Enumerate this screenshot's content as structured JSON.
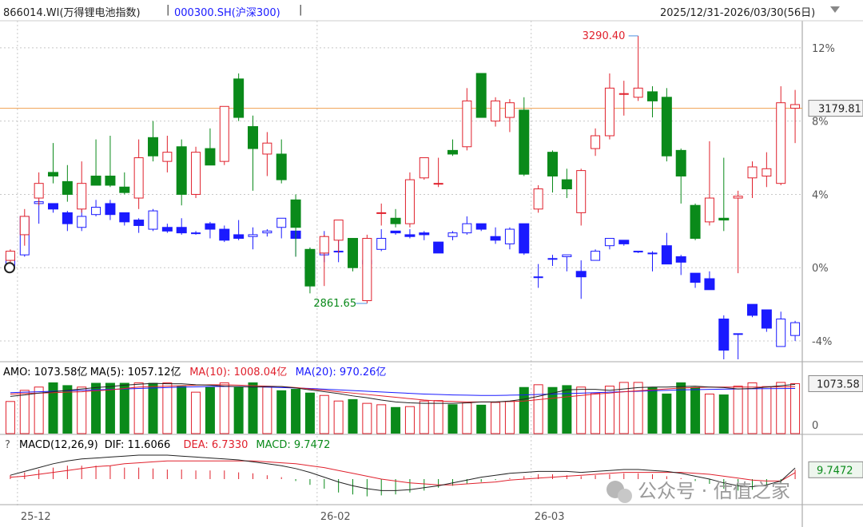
{
  "header": {
    "index_code": "866014.WI(万得锂电池指数)",
    "separator": "|",
    "compare_code": "000300.SH(沪深300)",
    "date_range": "2025/12/31-2026/03/30(56日)",
    "range_dropdown_icon": "triangle-down-icon"
  },
  "colors": {
    "up": "#e0202c",
    "down": "#0a8a1a",
    "compare": "#1a1aff",
    "ref_line": "#f0a050",
    "grid": "#c8c8c8"
  },
  "chart_data": [
    {
      "type": "candlestick",
      "name": "price",
      "series_main": "866014.WI(万得锂电池指数)",
      "series_compare": "000300.SH(沪深300)",
      "y_axis": {
        "unit": "%",
        "ticks": [
          12,
          8,
          4,
          0,
          -4
        ],
        "tick_labels": [
          "12%",
          "8%",
          "4%",
          "0%",
          "-4%"
        ],
        "range": [
          -5,
          13.3
        ]
      },
      "x_ticks": [
        {
          "label": "25-12",
          "index": 1
        },
        {
          "label": "26-02",
          "index": 22
        },
        {
          "label": "26-03",
          "index": 37
        }
      ],
      "reference_line": {
        "value_pct": 8.7,
        "label": "3179.81"
      },
      "annotations": [
        {
          "text": "3290.40",
          "index": 44,
          "pct": 12.65,
          "color": "up"
        },
        {
          "text": "2861.65",
          "index": 25,
          "pct": -1.95,
          "color": "down"
        }
      ],
      "main": [
        {
          "o": 0.4,
          "h": 1.0,
          "l": 0.0,
          "c": 0.9
        },
        {
          "o": 1.8,
          "h": 3.2,
          "l": 1.2,
          "c": 2.8
        },
        {
          "o": 3.8,
          "h": 5.2,
          "l": 3.4,
          "c": 4.6
        },
        {
          "o": 5.2,
          "h": 6.8,
          "l": 4.6,
          "c": 5.0
        },
        {
          "o": 4.7,
          "h": 5.6,
          "l": 3.6,
          "c": 4.0
        },
        {
          "o": 3.2,
          "h": 5.8,
          "l": 3.0,
          "c": 4.6
        },
        {
          "o": 5.0,
          "h": 7.0,
          "l": 4.6,
          "c": 4.5
        },
        {
          "o": 5.0,
          "h": 7.2,
          "l": 4.4,
          "c": 4.5
        },
        {
          "o": 4.4,
          "h": 5.2,
          "l": 4.0,
          "c": 4.1
        },
        {
          "o": 3.8,
          "h": 7.0,
          "l": 3.2,
          "c": 6.0
        },
        {
          "o": 7.1,
          "h": 8.0,
          "l": 5.8,
          "c": 6.1
        },
        {
          "o": 5.8,
          "h": 7.2,
          "l": 5.2,
          "c": 6.3
        },
        {
          "o": 6.6,
          "h": 7.0,
          "l": 3.4,
          "c": 4.0
        },
        {
          "o": 4.0,
          "h": 6.6,
          "l": 3.8,
          "c": 6.3
        },
        {
          "o": 6.5,
          "h": 7.6,
          "l": 5.6,
          "c": 5.6
        },
        {
          "o": 5.8,
          "h": 8.8,
          "l": 5.6,
          "c": 8.8
        },
        {
          "o": 10.3,
          "h": 10.6,
          "l": 8.0,
          "c": 8.2
        },
        {
          "o": 7.7,
          "h": 8.3,
          "l": 4.2,
          "c": 6.5
        },
        {
          "o": 6.2,
          "h": 7.4,
          "l": 5.0,
          "c": 6.8
        },
        {
          "o": 6.2,
          "h": 7.0,
          "l": 4.6,
          "c": 4.8
        },
        {
          "o": 3.7,
          "h": 4.0,
          "l": 0.6,
          "c": 2.2
        },
        {
          "o": 1.0,
          "h": 1.1,
          "l": -1.4,
          "c": -1.0
        },
        {
          "o": 0.8,
          "h": 1.8,
          "l": -1.0,
          "c": 1.7
        },
        {
          "o": 1.5,
          "h": 2.6,
          "l": 0.8,
          "c": 2.6
        },
        {
          "o": 1.6,
          "h": 1.6,
          "l": -0.2,
          "c": 0.0
        },
        {
          "o": -1.8,
          "h": 1.8,
          "l": -1.95,
          "c": 1.6
        },
        {
          "o": 3.0,
          "h": 3.5,
          "l": 2.3,
          "c": 3.0
        },
        {
          "o": 2.7,
          "h": 3.2,
          "l": 2.2,
          "c": 2.4
        },
        {
          "o": 2.4,
          "h": 5.2,
          "l": 2.2,
          "c": 4.8
        },
        {
          "o": 4.9,
          "h": 6.0,
          "l": 4.8,
          "c": 6.0
        },
        {
          "o": 4.6,
          "h": 6.0,
          "l": 4.4,
          "c": 4.6
        },
        {
          "o": 6.4,
          "h": 7.0,
          "l": 6.1,
          "c": 6.2
        },
        {
          "o": 6.6,
          "h": 9.8,
          "l": 6.4,
          "c": 9.1
        },
        {
          "o": 10.6,
          "h": 10.6,
          "l": 8.3,
          "c": 8.2
        },
        {
          "o": 8.0,
          "h": 9.3,
          "l": 7.7,
          "c": 9.1
        },
        {
          "o": 8.2,
          "h": 9.2,
          "l": 7.4,
          "c": 9.0
        },
        {
          "o": 8.6,
          "h": 9.3,
          "l": 5.0,
          "c": 5.1
        },
        {
          "o": 3.2,
          "h": 4.5,
          "l": 3.0,
          "c": 4.3
        },
        {
          "o": 6.3,
          "h": 6.4,
          "l": 4.1,
          "c": 5.0
        },
        {
          "o": 4.8,
          "h": 5.4,
          "l": 3.8,
          "c": 4.3
        },
        {
          "o": 3.0,
          "h": 5.4,
          "l": 2.3,
          "c": 5.3
        },
        {
          "o": 6.5,
          "h": 7.6,
          "l": 6.1,
          "c": 7.2
        },
        {
          "o": 7.2,
          "h": 10.6,
          "l": 7.0,
          "c": 9.8
        },
        {
          "o": 9.5,
          "h": 10.2,
          "l": 8.3,
          "c": 9.5
        },
        {
          "o": 9.3,
          "h": 12.65,
          "l": 9.1,
          "c": 9.8
        },
        {
          "o": 9.6,
          "h": 9.9,
          "l": 8.2,
          "c": 9.1
        },
        {
          "o": 9.3,
          "h": 9.8,
          "l": 5.8,
          "c": 6.1
        },
        {
          "o": 6.4,
          "h": 6.5,
          "l": 3.5,
          "c": 5.0
        },
        {
          "o": 3.4,
          "h": 3.5,
          "l": 1.5,
          "c": 1.6
        },
        {
          "o": 2.5,
          "h": 6.9,
          "l": 2.3,
          "c": 3.8
        },
        {
          "o": 2.7,
          "h": 6.0,
          "l": 2.0,
          "c": 2.6
        },
        {
          "o": 3.8,
          "h": 4.2,
          "l": -0.3,
          "c": 3.9
        },
        {
          "o": 4.9,
          "h": 5.8,
          "l": 3.8,
          "c": 5.5
        },
        {
          "o": 5.0,
          "h": 6.3,
          "l": 4.4,
          "c": 5.4
        },
        {
          "o": 4.6,
          "h": 9.9,
          "l": 4.5,
          "c": 9.0
        },
        {
          "o": 8.7,
          "h": 9.7,
          "l": 6.8,
          "c": 8.9
        }
      ],
      "compare": [
        {
          "o": 0.1,
          "h": 0.7,
          "l": 0.0,
          "c": 0.7
        },
        {
          "o": 0.7,
          "h": 2.8,
          "l": 0.6,
          "c": 2.8
        },
        {
          "o": 3.5,
          "h": 3.7,
          "l": 2.4,
          "c": 3.6
        },
        {
          "o": 3.5,
          "h": 3.5,
          "l": 3.0,
          "c": 3.2
        },
        {
          "o": 3.0,
          "h": 3.1,
          "l": 2.0,
          "c": 2.4
        },
        {
          "o": 2.2,
          "h": 3.2,
          "l": 2.0,
          "c": 2.8
        },
        {
          "o": 2.9,
          "h": 3.7,
          "l": 2.8,
          "c": 3.3
        },
        {
          "o": 3.5,
          "h": 3.7,
          "l": 2.6,
          "c": 2.9
        },
        {
          "o": 3.0,
          "h": 3.0,
          "l": 2.3,
          "c": 2.5
        },
        {
          "o": 2.6,
          "h": 2.7,
          "l": 1.9,
          "c": 2.3
        },
        {
          "o": 2.1,
          "h": 3.2,
          "l": 2.0,
          "c": 3.1
        },
        {
          "o": 2.2,
          "h": 2.4,
          "l": 1.9,
          "c": 2.0
        },
        {
          "o": 2.2,
          "h": 2.7,
          "l": 1.8,
          "c": 1.9
        },
        {
          "o": 1.9,
          "h": 2.0,
          "l": 1.8,
          "c": 1.9
        },
        {
          "o": 2.4,
          "h": 2.5,
          "l": 1.6,
          "c": 2.1
        },
        {
          "o": 2.1,
          "h": 2.3,
          "l": 1.4,
          "c": 1.5
        },
        {
          "o": 1.8,
          "h": 2.6,
          "l": 1.5,
          "c": 1.6
        },
        {
          "o": 1.7,
          "h": 2.2,
          "l": 1.0,
          "c": 1.8
        },
        {
          "o": 1.9,
          "h": 2.1,
          "l": 1.7,
          "c": 2.0
        },
        {
          "o": 2.2,
          "h": 2.7,
          "l": 1.6,
          "c": 2.7
        },
        {
          "o": 2.0,
          "h": 2.0,
          "l": 0.6,
          "c": 1.6
        },
        {
          "o": 0.9,
          "h": 1.1,
          "l": -1.1,
          "c": -0.6
        },
        {
          "o": 0.7,
          "h": 2.0,
          "l": 0.3,
          "c": 0.8
        },
        {
          "o": 0.9,
          "h": 1.5,
          "l": 0.3,
          "c": 0.9
        },
        {
          "o": 0.8,
          "h": 0.8,
          "l": 0.6,
          "c": 0.7
        },
        {
          "o": 0.2,
          "h": 1.0,
          "l": -0.2,
          "c": 0.4
        },
        {
          "o": 1.0,
          "h": 2.1,
          "l": 0.9,
          "c": 1.6
        },
        {
          "o": 2.0,
          "h": 2.0,
          "l": 1.8,
          "c": 1.9
        },
        {
          "o": 1.8,
          "h": 2.1,
          "l": 1.6,
          "c": 1.7
        },
        {
          "o": 1.9,
          "h": 2.0,
          "l": 1.5,
          "c": 1.8
        },
        {
          "o": 1.4,
          "h": 1.4,
          "l": 0.8,
          "c": 0.8
        },
        {
          "o": 1.7,
          "h": 2.0,
          "l": 1.5,
          "c": 1.9
        },
        {
          "o": 1.9,
          "h": 2.8,
          "l": 1.8,
          "c": 2.4
        },
        {
          "o": 2.4,
          "h": 2.4,
          "l": 2.0,
          "c": 2.1
        },
        {
          "o": 1.7,
          "h": 2.2,
          "l": 1.3,
          "c": 1.5
        },
        {
          "o": 1.3,
          "h": 2.2,
          "l": 1.0,
          "c": 2.1
        },
        {
          "o": 2.4,
          "h": 2.4,
          "l": 0.7,
          "c": 0.8
        },
        {
          "o": -0.5,
          "h": 0.2,
          "l": -1.1,
          "c": -0.5
        },
        {
          "o": 0.5,
          "h": 0.7,
          "l": 0.1,
          "c": 0.5
        },
        {
          "o": 0.6,
          "h": 0.7,
          "l": -0.2,
          "c": 0.7
        },
        {
          "o": -0.2,
          "h": 0.4,
          "l": -1.7,
          "c": -0.5
        },
        {
          "o": 0.4,
          "h": 1.0,
          "l": 0.4,
          "c": 0.9
        },
        {
          "o": 1.2,
          "h": 1.6,
          "l": 1.0,
          "c": 1.6
        },
        {
          "o": 1.5,
          "h": 1.5,
          "l": 1.2,
          "c": 1.3
        },
        {
          "o": 0.9,
          "h": 0.9,
          "l": 0.8,
          "c": 0.9
        },
        {
          "o": 0.8,
          "h": 0.9,
          "l": -0.2,
          "c": 0.8
        },
        {
          "o": 1.2,
          "h": 1.9,
          "l": 0.2,
          "c": 0.2
        },
        {
          "o": 0.6,
          "h": 0.7,
          "l": -0.4,
          "c": 0.3
        },
        {
          "o": -0.3,
          "h": -0.4,
          "l": -1.1,
          "c": -0.8
        },
        {
          "o": -0.6,
          "h": -0.2,
          "l": -1.2,
          "c": -1.2
        },
        {
          "o": -2.8,
          "h": -2.6,
          "l": -5.0,
          "c": -4.5
        },
        {
          "o": -3.6,
          "h": -3.6,
          "l": -5.0,
          "c": -3.6
        },
        {
          "o": -2.0,
          "h": -2.0,
          "l": -2.7,
          "c": -2.6
        },
        {
          "o": -2.3,
          "h": -2.3,
          "l": -3.5,
          "c": -3.3
        },
        {
          "o": -4.3,
          "h": -2.4,
          "l": -4.3,
          "c": -2.8
        },
        {
          "o": -3.7,
          "h": -2.9,
          "l": -4.0,
          "c": -3.0
        }
      ]
    },
    {
      "type": "bar",
      "name": "amount",
      "legend": [
        {
          "label": "AMO: 1073.58亿",
          "color": "#000000"
        },
        {
          "label": "MA(5): 1057.12亿",
          "color": "#000000"
        },
        {
          "label": "MA(10): 1008.04亿",
          "color": "#e0202c"
        },
        {
          "label": "MA(20): 970.26亿",
          "color": "#1a1aff"
        }
      ],
      "last_label": "1073.58",
      "zero_label": "0",
      "values": [
        690,
        930,
        1000,
        1100,
        1040,
        1000,
        1090,
        1090,
        1090,
        1090,
        1090,
        1090,
        1020,
        890,
        1000,
        1090,
        1000,
        1100,
        1000,
        930,
        960,
        880,
        820,
        700,
        740,
        650,
        620,
        570,
        580,
        700,
        710,
        630,
        660,
        620,
        670,
        690,
        1000,
        1050,
        1000,
        1040,
        1000,
        870,
        1020,
        1100,
        1100,
        1000,
        860,
        1100,
        1000,
        850,
        840,
        1020,
        1090,
        1010,
        1100,
        1073.58
      ],
      "ma5": [
        800,
        830,
        870,
        900,
        930,
        960,
        990,
        1010,
        1040,
        1060,
        1080,
        1070,
        1070,
        1050,
        1040,
        1020,
        1010,
        1000,
        1010,
        1010,
        980,
        940,
        900,
        860,
        810,
        770,
        720,
        680,
        660,
        650,
        650,
        650,
        660,
        680,
        680,
        700,
        740,
        800,
        870,
        940,
        950,
        950,
        930,
        960,
        990,
        1000,
        1000,
        1010,
        1020,
        1000,
        990,
        960,
        970,
        1000,
        1030,
        1057.12
      ],
      "ma10": [
        850,
        860,
        870,
        880,
        890,
        900,
        920,
        940,
        970,
        1000,
        1010,
        1020,
        1030,
        1040,
        1050,
        1050,
        1040,
        1030,
        1020,
        1010,
        990,
        960,
        930,
        900,
        870,
        840,
        810,
        780,
        750,
        720,
        700,
        690,
        680,
        680,
        680,
        690,
        700,
        730,
        760,
        790,
        820,
        850,
        870,
        900,
        920,
        940,
        960,
        980,
        990,
        1000,
        1000,
        1000,
        1000,
        1000,
        1005,
        1008.04
      ],
      "ma20": [
        880,
        890,
        900,
        910,
        920,
        930,
        940,
        950,
        960,
        970,
        980,
        990,
        1000,
        1005,
        1010,
        1015,
        1010,
        1005,
        1000,
        990,
        980,
        970,
        955,
        940,
        925,
        910,
        895,
        880,
        865,
        850,
        840,
        830,
        825,
        820,
        820,
        825,
        830,
        840,
        850,
        860,
        870,
        880,
        890,
        900,
        910,
        920,
        930,
        940,
        945,
        950,
        955,
        960,
        963,
        966,
        968,
        970.26
      ]
    },
    {
      "type": "bar",
      "name": "macd",
      "help_icon": "?",
      "legend": [
        {
          "label": "MACD(12,26,9)",
          "color": "#000000"
        },
        {
          "label": "DIF: 11.6066",
          "color": "#000000"
        },
        {
          "label": "DEA: 6.7330",
          "color": "#e0202c"
        },
        {
          "label": "MACD: 9.7472",
          "color": "#0a8a1a"
        }
      ],
      "last_label": "9.7472",
      "hist": [
        4,
        7,
        10,
        12,
        14,
        14,
        14,
        14,
        12,
        12,
        11,
        10,
        10,
        9,
        9,
        9,
        7,
        6,
        4,
        2,
        -2,
        -6,
        -10,
        -14,
        -16,
        -18,
        -17,
        -16,
        -14,
        -12,
        -9,
        -7,
        -5,
        -3,
        -1,
        1,
        3,
        5,
        5,
        4,
        3,
        4,
        5,
        6,
        6,
        5,
        3,
        1,
        -2,
        -5,
        -10,
        -12,
        -11,
        -9,
        -4,
        9.7472
      ],
      "dif": [
        4,
        8,
        12,
        16,
        19,
        21,
        22,
        23,
        24,
        25,
        25,
        25,
        24,
        23,
        22,
        21,
        20,
        18,
        16,
        14,
        11,
        7,
        2,
        -3,
        -7,
        -10,
        -12,
        -12,
        -11,
        -9,
        -7,
        -4,
        -1,
        2,
        4,
        6,
        7,
        8,
        8,
        8,
        7,
        8,
        9,
        10,
        10,
        9,
        8,
        6,
        3,
        0,
        -4,
        -7,
        -8,
        -6,
        -2,
        11.6066
      ],
      "dea": [
        2,
        3,
        5,
        7,
        9,
        11,
        13,
        14,
        16,
        17,
        18,
        19,
        19,
        19,
        19,
        19,
        19,
        19,
        18,
        17,
        16,
        14,
        12,
        9,
        6,
        3,
        0,
        -2,
        -4,
        -5,
        -6,
        -6,
        -5,
        -4,
        -3,
        -1,
        0,
        1,
        2,
        3,
        4,
        5,
        6,
        7,
        7,
        7,
        7,
        7,
        6,
        5,
        3,
        1,
        -1,
        -2,
        -2,
        6.733
      ]
    }
  ],
  "watermark": "公众号 · 估值之家",
  "watermark_icon": "wechat-icon"
}
